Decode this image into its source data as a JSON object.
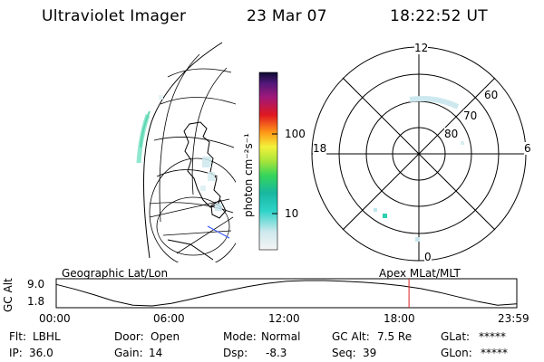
{
  "header": {
    "instrument": "Ultraviolet Imager",
    "date": "23 Mar 07",
    "time": "18:22:52 UT"
  },
  "colorbar": {
    "unit_label": "photon cm⁻²s⁻¹",
    "ticks": [
      "100",
      "10"
    ],
    "scale": "log"
  },
  "polar_plot": {
    "mlt_labels": {
      "top": "12",
      "left": "18",
      "right": "6",
      "bottom": "0"
    },
    "lat_labels": [
      "60",
      "70",
      "80"
    ]
  },
  "timeline": {
    "left_label": "Geographic Lat/Lon",
    "right_label": "Apex MLat/MLT",
    "y_axis_label": "GC Alt",
    "y_ticks": [
      "9.0",
      "1.8"
    ],
    "x_ticks": [
      "00:00",
      "06:00",
      "12:00",
      "18:00",
      "23:59"
    ],
    "current_time_fraction": 0.7659,
    "altitude_curve": {
      "hours": [
        0,
        1,
        2,
        3,
        4,
        5,
        6,
        7,
        8,
        9,
        10,
        11,
        12,
        13,
        14,
        15,
        16,
        17,
        18,
        19,
        20,
        21,
        22,
        23,
        23.983
      ],
      "alt_re": [
        7.9,
        6.5,
        4.9,
        3.2,
        2.0,
        1.8,
        2.5,
        3.7,
        5.0,
        6.2,
        7.3,
        8.2,
        8.8,
        9.0,
        9.0,
        8.8,
        8.5,
        8.1,
        7.5,
        6.7,
        5.6,
        4.3,
        3.0,
        2.0,
        2.4
      ]
    },
    "current_marker_color": "#e02020"
  },
  "info": {
    "filter_label": "Flt:",
    "filter_value": "LBHL",
    "ip_label": "IP:",
    "ip_value": "36.0",
    "door_label": "Door:",
    "door_value": "Open",
    "gain_label": "Gain:",
    "gain_value": "14",
    "mode_label": "Mode:",
    "mode_value": "Normal",
    "dsp_label": "Dsp:",
    "dsp_value": "-8.3",
    "gcalt_label": "GC Alt:",
    "gcalt_value": "7.5 Re",
    "seq_label": "Seq:",
    "seq_value": "39",
    "glat_label": "GLat:",
    "glat_value": "*****",
    "glon_label": "GLon:",
    "glon_value": "*****"
  }
}
